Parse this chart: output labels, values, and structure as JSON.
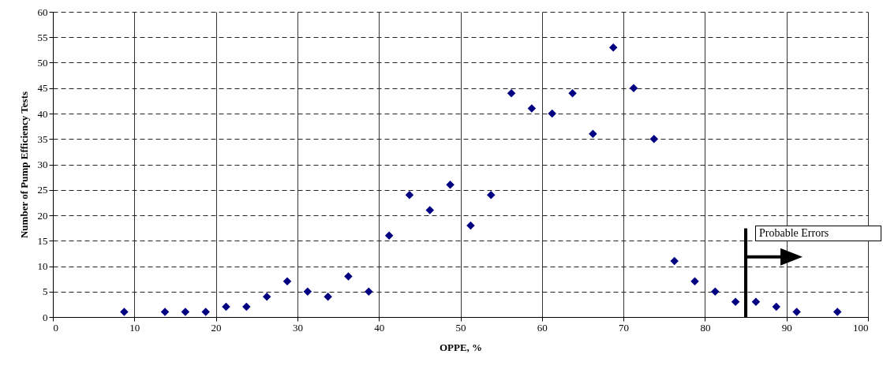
{
  "chart_data": {
    "type": "scatter",
    "xlabel": "OPPE, %",
    "ylabel": "Number of Pump Efficiency Tests",
    "x": [
      8.75,
      13.75,
      16.25,
      18.75,
      21.25,
      23.75,
      26.25,
      28.75,
      31.25,
      33.75,
      36.25,
      38.75,
      41.25,
      43.75,
      46.25,
      48.75,
      51.25,
      53.75,
      56.25,
      58.75,
      61.25,
      63.75,
      66.25,
      68.75,
      71.25,
      73.75,
      76.25,
      78.75,
      81.25,
      83.75,
      86.25,
      88.75,
      91.25,
      96.25
    ],
    "series": [
      {
        "color": "#000080",
        "values": [
          1,
          1,
          1,
          1,
          2,
          2,
          4,
          7,
          5,
          4,
          8,
          5,
          16,
          24,
          21,
          26,
          18,
          24,
          44,
          41,
          40,
          44,
          36,
          53,
          45,
          35,
          11,
          7,
          5,
          3,
          3,
          2,
          1,
          1
        ]
      }
    ],
    "xlim": [
      0,
      100
    ],
    "xticks": [
      0,
      10,
      20,
      30,
      40,
      50,
      60,
      70,
      80,
      90,
      100
    ],
    "ylim": [
      0,
      60
    ],
    "yticks": [
      0,
      5,
      10,
      15,
      20,
      25,
      30,
      35,
      40,
      45,
      50,
      55,
      60
    ],
    "grid": true,
    "marker": "diamond",
    "ref_lines": [
      {
        "axis": "x",
        "value": 85,
        "label": "Probable Errors"
      }
    ]
  }
}
